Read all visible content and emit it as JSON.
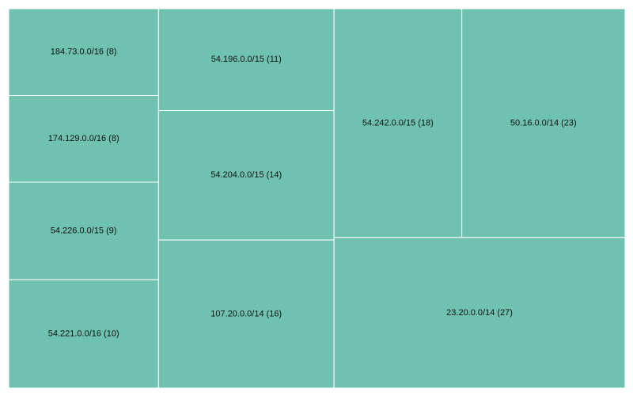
{
  "chart_data": {
    "type": "treemap",
    "color": "#6fc2b0",
    "labels": [
      "184.73.0.0/16 (8)",
      "174.129.0.0/16 (8)",
      "54.226.0.0/15 (9)",
      "54.221.0.0/16 (10)",
      "54.196.0.0/15 (11)",
      "54.204.0.0/15 (14)",
      "107.20.0.0/14 (16)",
      "54.242.0.0/15 (18)",
      "50.16.0.0/14 (23)",
      "23.20.0.0/14 (27)"
    ],
    "values": [
      8,
      8,
      9,
      10,
      11,
      14,
      16,
      18,
      23,
      27
    ]
  }
}
